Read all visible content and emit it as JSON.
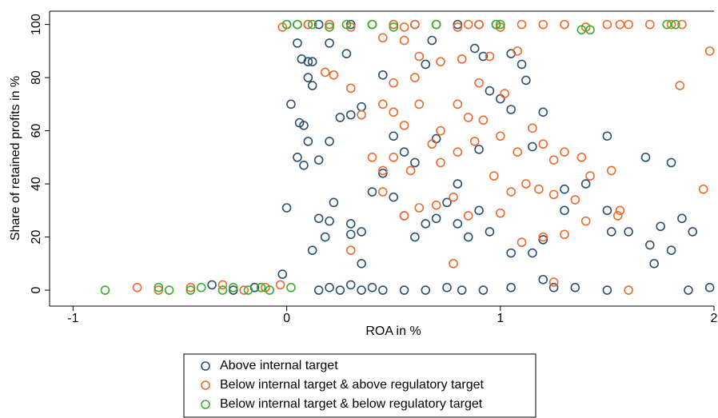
{
  "chart_data": {
    "type": "scatter",
    "x_label": "ROA in %",
    "y_label": "Share of retained profits in %",
    "xlim": [
      -1.11,
      2.0
    ],
    "ylim": [
      -6,
      105
    ],
    "xticks": [
      -1,
      0,
      1,
      2
    ],
    "yticks": [
      0,
      20,
      40,
      60,
      80,
      100
    ],
    "legend": "bottom",
    "series": [
      {
        "name": "Above internal target",
        "color": "#2a4f73",
        "x": [
          0.0,
          0.05,
          0.1,
          0.15,
          0.2,
          0.3,
          0.4,
          0.5,
          0.6,
          0.7,
          0.8,
          0.9,
          0.98,
          0.05,
          0.07,
          0.1,
          0.12,
          0.1,
          0.12,
          0.2,
          0.28,
          0.65,
          0.88,
          0.92,
          1.05,
          1.1,
          1.12,
          0.68,
          0.02,
          0.06,
          0.08,
          0.1,
          0.05,
          0.08,
          0.15,
          0.2,
          0.3,
          0.35,
          0.25,
          0.45,
          0.5,
          0.55,
          0.6,
          0.7,
          0.8,
          0.9,
          0.95,
          1.0,
          1.05,
          1.2,
          1.15,
          1.3,
          1.5,
          1.68,
          1.8,
          0.15,
          0.18,
          0.22,
          0.3,
          0.35,
          0.4,
          0.45,
          0.5,
          0.55,
          0.6,
          0.65,
          0.7,
          0.75,
          0.8,
          0.85,
          0.9,
          0.95,
          1.05,
          1.15,
          1.2,
          1.3,
          1.4,
          1.5,
          1.52,
          1.6,
          1.7,
          1.72,
          1.75,
          1.8,
          1.85,
          1.9,
          0.35,
          0.2,
          0.12,
          0.3,
          -0.35,
          -0.25,
          -0.15,
          -0.02,
          0.0,
          0.15,
          0.2,
          0.25,
          0.3,
          0.35,
          0.4,
          0.45,
          0.55,
          0.65,
          0.75,
          0.82,
          0.92,
          1.05,
          1.2,
          1.25,
          1.35,
          1.5,
          1.88,
          1.98
        ],
        "values": [
          100,
          100,
          100,
          100,
          100,
          100,
          100,
          100,
          100,
          100,
          100,
          100,
          100,
          93,
          87,
          86,
          86,
          80,
          77,
          93,
          89,
          85,
          91,
          88,
          89,
          85,
          79,
          94,
          70,
          63,
          62,
          56,
          50,
          47,
          49,
          56,
          66,
          69,
          65,
          81,
          58,
          52,
          48,
          57,
          40,
          53,
          75,
          72,
          68,
          67,
          54,
          38,
          58,
          50,
          48,
          27,
          20,
          33,
          25,
          22,
          37,
          44,
          35,
          28,
          20,
          25,
          27,
          33,
          25,
          20,
          30,
          22,
          14,
          14,
          19,
          30,
          40,
          30,
          22,
          22,
          17,
          10,
          24,
          15,
          27,
          22,
          10,
          26,
          15,
          21,
          2,
          0,
          1,
          6,
          31,
          0,
          1,
          0,
          2,
          0,
          1,
          0,
          0,
          0,
          1,
          0,
          0,
          1,
          4,
          1,
          1,
          0,
          0,
          1
        ]
      },
      {
        "name": "Below internal target & above regulatory target",
        "color": "#ee6a2c",
        "x": [
          -0.7,
          -0.6,
          -0.45,
          -0.3,
          -0.2,
          -0.1,
          -0.03,
          -0.02,
          0.1,
          0.2,
          0.3,
          0.4,
          0.5,
          0.55,
          0.6,
          0.7,
          0.8,
          0.85,
          0.9,
          1.0,
          1.1,
          1.2,
          1.3,
          1.4,
          1.5,
          1.6,
          1.7,
          1.8,
          1.85,
          1.98,
          1.84,
          1.56,
          0.45,
          0.55,
          0.62,
          0.72,
          0.82,
          0.9,
          0.95,
          1.02,
          1.08,
          0.22,
          0.18,
          0.3,
          0.5,
          0.6,
          0.35,
          0.45,
          0.5,
          0.55,
          0.62,
          0.8,
          0.85,
          0.92,
          1.0,
          1.08,
          1.15,
          1.2,
          1.25,
          1.3,
          1.38,
          0.4,
          0.45,
          0.5,
          0.58,
          0.68,
          0.72,
          0.8,
          0.88,
          0.97,
          1.05,
          1.12,
          1.18,
          1.25,
          1.35,
          1.42,
          1.52,
          0.45,
          0.55,
          0.62,
          0.7,
          0.78,
          0.85,
          1.0,
          1.1,
          1.2,
          1.3,
          1.4,
          1.55,
          1.56,
          0.78,
          0.3,
          1.25,
          1.6,
          0.72,
          1.95
        ],
        "values": [
          1,
          0,
          1,
          2,
          0,
          1,
          2,
          99,
          100,
          100,
          99,
          100,
          100,
          99,
          100,
          100,
          99,
          100,
          100,
          99,
          100,
          100,
          100,
          99,
          100,
          100,
          100,
          100,
          100,
          90,
          77,
          100,
          95,
          94,
          88,
          86,
          87,
          78,
          88,
          74,
          90,
          81,
          82,
          76,
          78,
          80,
          66,
          70,
          67,
          62,
          70,
          70,
          65,
          64,
          58,
          52,
          61,
          55,
          49,
          52,
          50,
          50,
          45,
          50,
          45,
          55,
          48,
          52,
          56,
          43,
          37,
          40,
          38,
          36,
          34,
          43,
          45,
          37,
          28,
          31,
          32,
          35,
          28,
          29,
          18,
          20,
          21,
          26,
          28,
          30,
          10,
          15,
          3,
          0,
          60,
          38
        ]
      },
      {
        "name": "Below internal target & below regulatory target",
        "color": "#3aae2a",
        "x": [
          -0.85,
          -0.6,
          -0.55,
          -0.45,
          -0.4,
          -0.3,
          -0.25,
          -0.18,
          -0.12,
          -0.08,
          0.02,
          0.0,
          0.05,
          0.12,
          0.2,
          0.28,
          0.4,
          0.5,
          0.7,
          0.98,
          1.0,
          1.38,
          1.42,
          1.78,
          1.82
        ],
        "values": [
          0,
          1,
          0,
          0,
          1,
          0,
          1,
          0,
          1,
          0,
          1,
          100,
          100,
          100,
          99,
          100,
          100,
          99,
          100,
          100,
          100,
          98,
          98,
          100,
          100
        ]
      }
    ]
  }
}
